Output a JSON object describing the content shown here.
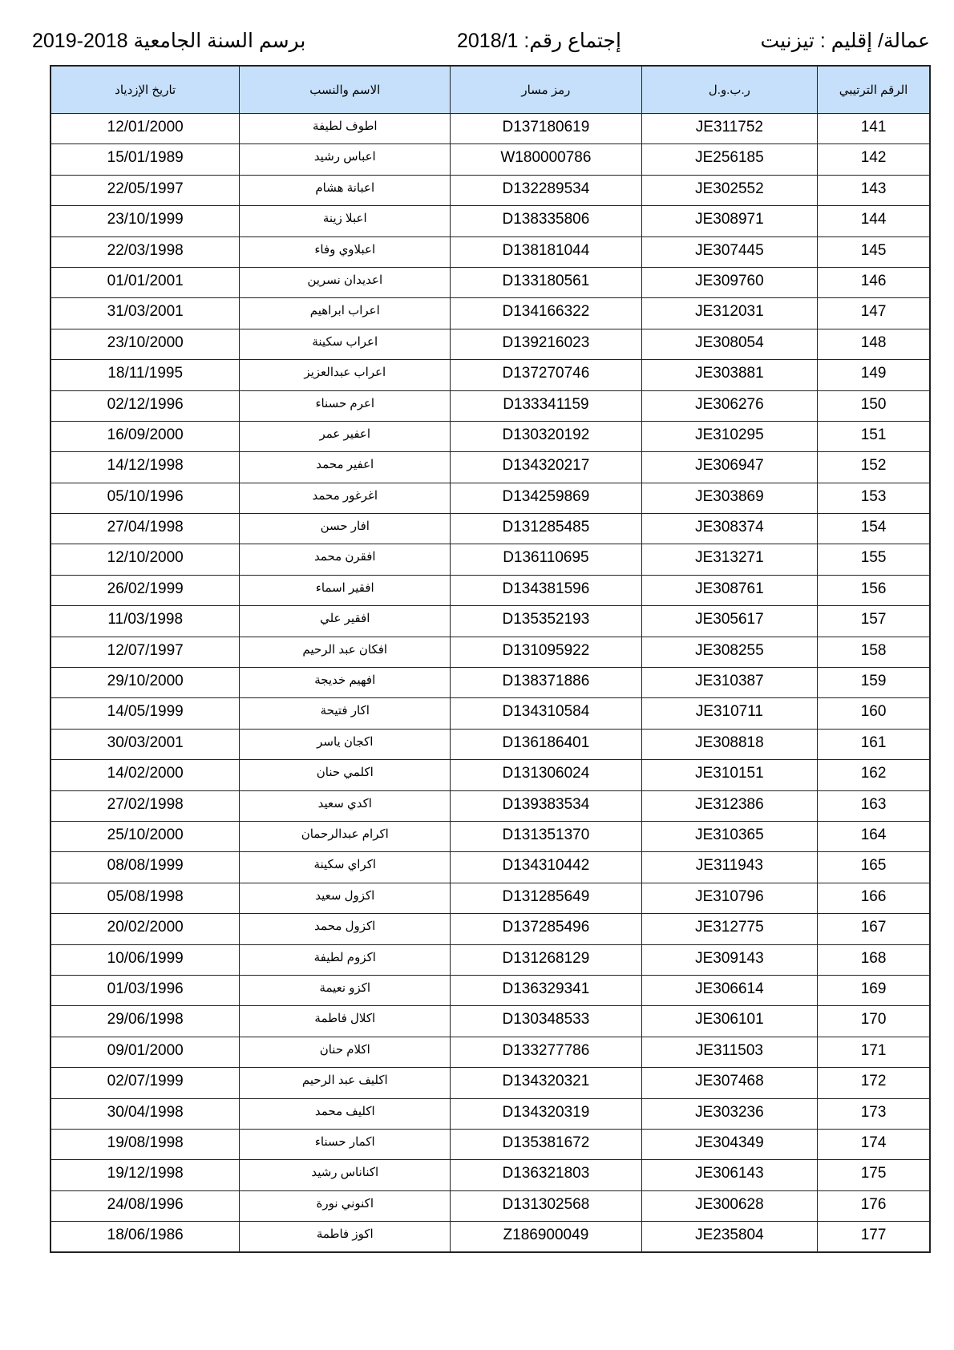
{
  "header": {
    "prefecture": "عمالة/ إقليم : تيزنيت",
    "meeting": "إجتماع رقم:  2018/1",
    "academic_year": "برسم السنة الجامعية  2018-2019"
  },
  "table": {
    "columns": [
      "الرقم الترتيبي",
      "ر.ب.و.ل",
      "رمز مسار",
      "الاسم والنسب",
      "تاريخ الإزدياد"
    ],
    "rows": [
      [
        "141",
        "JE311752",
        "D137180619",
        "اطوف لطيفة",
        "12/01/2000"
      ],
      [
        "142",
        "JE256185",
        "W180000786",
        "اعباس رشيد",
        "15/01/1989"
      ],
      [
        "143",
        "JE302552",
        "D132289534",
        "اعبانة هشام",
        "22/05/1997"
      ],
      [
        "144",
        "JE308971",
        "D138335806",
        "اعبلا زينة",
        "23/10/1999"
      ],
      [
        "145",
        "JE307445",
        "D138181044",
        "اعبلاوي وفاء",
        "22/03/1998"
      ],
      [
        "146",
        "JE309760",
        "D133180561",
        "اعديدان نسرين",
        "01/01/2001"
      ],
      [
        "147",
        "JE312031",
        "D134166322",
        "اعراب ابراهيم",
        "31/03/2001"
      ],
      [
        "148",
        "JE308054",
        "D139216023",
        "اعراب سكينة",
        "23/10/2000"
      ],
      [
        "149",
        "JE303881",
        "D137270746",
        "اعراب عبدالعزيز",
        "18/11/1995"
      ],
      [
        "150",
        "JE306276",
        "D133341159",
        "اعرم حسناء",
        "02/12/1996"
      ],
      [
        "151",
        "JE310295",
        "D130320192",
        "اعفير عمر",
        "16/09/2000"
      ],
      [
        "152",
        "JE306947",
        "D134320217",
        "اعفير محمد",
        "14/12/1998"
      ],
      [
        "153",
        "JE303869",
        "D134259869",
        "اغرغور محمد",
        "05/10/1996"
      ],
      [
        "154",
        "JE308374",
        "D131285485",
        "افار حسن",
        "27/04/1998"
      ],
      [
        "155",
        "JE313271",
        "D136110695",
        "افقرن محمد",
        "12/10/2000"
      ],
      [
        "156",
        "JE308761",
        "D134381596",
        "افقير اسماء",
        "26/02/1999"
      ],
      [
        "157",
        "JE305617",
        "D135352193",
        "افقير علي",
        "11/03/1998"
      ],
      [
        "158",
        "JE308255",
        "D131095922",
        "افكان عبد الرحيم",
        "12/07/1997"
      ],
      [
        "159",
        "JE310387",
        "D138371886",
        "افهيم خديجة",
        "29/10/2000"
      ],
      [
        "160",
        "JE310711",
        "D134310584",
        "اكار فتيحة",
        "14/05/1999"
      ],
      [
        "161",
        "JE308818",
        "D136186401",
        "اكجان ياسر",
        "30/03/2001"
      ],
      [
        "162",
        "JE310151",
        "D131306024",
        "اكلمي حنان",
        "14/02/2000"
      ],
      [
        "163",
        "JE312386",
        "D139383534",
        "اكدي سعيد",
        "27/02/1998"
      ],
      [
        "164",
        "JE310365",
        "D131351370",
        "اكرام عبدالرحمان",
        "25/10/2000"
      ],
      [
        "165",
        "JE311943",
        "D134310442",
        "اكراي سكينة",
        "08/08/1999"
      ],
      [
        "166",
        "JE310796",
        "D131285649",
        "اكزول سعيد",
        "05/08/1998"
      ],
      [
        "167",
        "JE312775",
        "D137285496",
        "اكزول محمد",
        "20/02/2000"
      ],
      [
        "168",
        "JE309143",
        "D131268129",
        "اكزوم لطيفة",
        "10/06/1999"
      ],
      [
        "169",
        "JE306614",
        "D136329341",
        "اكزو نعيمة",
        "01/03/1996"
      ],
      [
        "170",
        "JE306101",
        "D130348533",
        "اكلال فاطمة",
        "29/06/1998"
      ],
      [
        "171",
        "JE311503",
        "D133277786",
        "اكلام حنان",
        "09/01/2000"
      ],
      [
        "172",
        "JE307468",
        "D134320321",
        "اكليف عبد الرحيم",
        "02/07/1999"
      ],
      [
        "173",
        "JE303236",
        "D134320319",
        "اكليف محمد",
        "30/04/1998"
      ],
      [
        "174",
        "JE304349",
        "D135381672",
        "اكمار حسناء",
        "19/08/1998"
      ],
      [
        "175",
        "JE306143",
        "D136321803",
        "اكناناس رشيد",
        "19/12/1998"
      ],
      [
        "176",
        "JE300628",
        "D131302568",
        "اكنوني نورة",
        "24/08/1996"
      ],
      [
        "177",
        "JE235804",
        "Z186900049",
        "اكوز فاطمة",
        "18/06/1986"
      ]
    ]
  },
  "colors": {
    "header_bg": "#c6e0fb",
    "border": "#222222"
  }
}
